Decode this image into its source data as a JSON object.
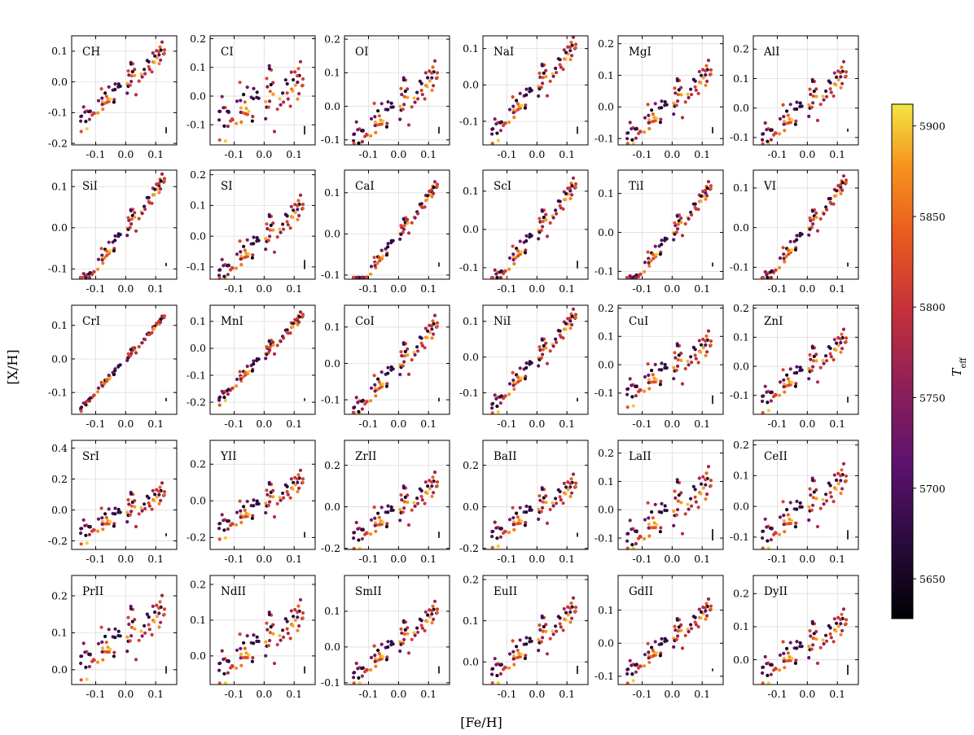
{
  "figure": {
    "xlabel": "[Fe/H]",
    "ylabel": "[X/H]",
    "colorbar_label": "T_eff"
  },
  "chart_data": {
    "type": "scatter",
    "layout": "5x6 grid of panels",
    "shared_x": {
      "label": "[Fe/H]",
      "range": [
        -0.18,
        0.17
      ],
      "ticks": [
        -0.1,
        0.0,
        0.1
      ]
    },
    "shared_y_label": "[X/H]",
    "grid": true,
    "color_encoding": {
      "label": "T_eff",
      "colormap": "inferno-like (black → dark red → orange → yellow)",
      "range": [
        5628,
        5912
      ],
      "ticks": [
        5650,
        5700,
        5750,
        5800,
        5850,
        5900
      ],
      "placement": "right"
    },
    "stars_per_panel": 80,
    "panels": [
      {
        "element": "CH",
        "ylim": [
          -0.205,
          0.15
        ],
        "yticks": [
          -0.2,
          -0.1,
          0.0,
          0.1
        ],
        "slope": 0.85,
        "scatter": 0.035,
        "offset": 0.0,
        "errorbar": 0.02
      },
      {
        "element": "CI",
        "ylim": [
          -0.17,
          0.21
        ],
        "yticks": [
          -0.1,
          0.0,
          0.1,
          0.2
        ],
        "slope": 0.55,
        "scatter": 0.07,
        "offset": 0.0,
        "errorbar": 0.03
      },
      {
        "element": "OI",
        "ylim": [
          -0.115,
          0.21
        ],
        "yticks": [
          -0.1,
          0.0,
          0.1,
          0.2
        ],
        "slope": 0.75,
        "scatter": 0.045,
        "offset": 0.01,
        "errorbar": 0.02
      },
      {
        "element": "NaI",
        "ylim": [
          -0.165,
          0.135
        ],
        "yticks": [
          -0.1,
          0.0,
          0.1
        ],
        "slope": 0.9,
        "scatter": 0.03,
        "offset": 0.0,
        "errorbar": 0.02
      },
      {
        "element": "MgI",
        "ylim": [
          -0.12,
          0.225
        ],
        "yticks": [
          -0.1,
          0.0,
          0.1,
          0.2
        ],
        "slope": 0.8,
        "scatter": 0.04,
        "offset": 0.02,
        "errorbar": 0.02
      },
      {
        "element": "AlI",
        "ylim": [
          -0.125,
          0.245
        ],
        "yticks": [
          -0.1,
          0.0,
          0.1,
          0.2
        ],
        "slope": 0.85,
        "scatter": 0.045,
        "offset": 0.02,
        "errorbar": 0.01
      },
      {
        "element": "SiI",
        "ylim": [
          -0.125,
          0.14
        ],
        "yticks": [
          -0.1,
          0.0,
          0.1
        ],
        "slope": 0.95,
        "scatter": 0.02,
        "offset": 0.0,
        "errorbar": 0.008
      },
      {
        "element": "SI",
        "ylim": [
          -0.14,
          0.215
        ],
        "yticks": [
          -0.1,
          0.0,
          0.1,
          0.2
        ],
        "slope": 0.85,
        "scatter": 0.04,
        "offset": 0.0,
        "errorbar": 0.03
      },
      {
        "element": "CaI",
        "ylim": [
          -0.11,
          0.155
        ],
        "yticks": [
          -0.1,
          0.0,
          0.1
        ],
        "slope": 0.95,
        "scatter": 0.015,
        "offset": 0.0,
        "errorbar": 0.01
      },
      {
        "element": "ScI",
        "ylim": [
          -0.13,
          0.155
        ],
        "yticks": [
          -0.1,
          0.0,
          0.1
        ],
        "slope": 0.95,
        "scatter": 0.025,
        "offset": 0.0,
        "errorbar": 0.02
      },
      {
        "element": "TiI",
        "ylim": [
          -0.12,
          0.16
        ],
        "yticks": [
          -0.1,
          0.0,
          0.1
        ],
        "slope": 0.95,
        "scatter": 0.02,
        "offset": 0.0,
        "errorbar": 0.01
      },
      {
        "element": "VI",
        "ylim": [
          -0.13,
          0.145
        ],
        "yticks": [
          -0.1,
          0.0,
          0.1
        ],
        "slope": 0.95,
        "scatter": 0.02,
        "offset": 0.0,
        "errorbar": 0.01
      },
      {
        "element": "CrI",
        "ylim": [
          -0.165,
          0.16
        ],
        "yticks": [
          -0.1,
          0.0,
          0.1
        ],
        "slope": 1.0,
        "scatter": 0.008,
        "offset": 0.0,
        "errorbar": 0.01
      },
      {
        "element": "MnI",
        "ylim": [
          -0.245,
          0.16
        ],
        "yticks": [
          -0.2,
          -0.1,
          0.0,
          0.1
        ],
        "slope": 1.15,
        "scatter": 0.02,
        "offset": -0.02,
        "errorbar": 0.01
      },
      {
        "element": "CoI",
        "ylim": [
          -0.14,
          0.16
        ],
        "yticks": [
          -0.1,
          0.0,
          0.1
        ],
        "slope": 0.9,
        "scatter": 0.03,
        "offset": 0.0,
        "errorbar": 0.01
      },
      {
        "element": "NiI",
        "ylim": [
          -0.16,
          0.145
        ],
        "yticks": [
          -0.1,
          0.0,
          0.1
        ],
        "slope": 0.95,
        "scatter": 0.025,
        "offset": 0.0,
        "errorbar": 0.01
      },
      {
        "element": "CuI",
        "ylim": [
          -0.175,
          0.21
        ],
        "yticks": [
          -0.1,
          0.0,
          0.1,
          0.2
        ],
        "slope": 0.7,
        "scatter": 0.045,
        "offset": 0.0,
        "errorbar": 0.03
      },
      {
        "element": "ZnI",
        "ylim": [
          -0.165,
          0.21
        ],
        "yticks": [
          -0.1,
          0.0,
          0.1,
          0.2
        ],
        "slope": 0.8,
        "scatter": 0.04,
        "offset": 0.0,
        "errorbar": 0.02
      },
      {
        "element": "SrI",
        "ylim": [
          -0.255,
          0.45
        ],
        "yticks": [
          -0.2,
          0.0,
          0.2,
          0.4
        ],
        "slope": 1.0,
        "scatter": 0.07,
        "offset": 0.0,
        "errorbar": 0.02
      },
      {
        "element": "YII",
        "ylim": [
          -0.265,
          0.33
        ],
        "yticks": [
          -0.2,
          0.0,
          0.2
        ],
        "slope": 1.0,
        "scatter": 0.06,
        "offset": 0.0,
        "errorbar": 0.03
      },
      {
        "element": "ZrII",
        "ylim": [
          -0.205,
          0.32
        ],
        "yticks": [
          -0.2,
          0.0,
          0.2
        ],
        "slope": 1.0,
        "scatter": 0.06,
        "offset": 0.0,
        "errorbar": 0.03
      },
      {
        "element": "BaII",
        "ylim": [
          -0.205,
          0.32
        ],
        "yticks": [
          -0.2,
          0.0,
          0.2
        ],
        "slope": 0.95,
        "scatter": 0.055,
        "offset": 0.0,
        "errorbar": 0.02
      },
      {
        "element": "LaII",
        "ylim": [
          -0.14,
          0.245
        ],
        "yticks": [
          -0.1,
          0.0,
          0.1,
          0.2
        ],
        "slope": 0.8,
        "scatter": 0.06,
        "offset": 0.01,
        "errorbar": 0.04
      },
      {
        "element": "CeII",
        "ylim": [
          -0.14,
          0.215
        ],
        "yticks": [
          -0.1,
          0.0,
          0.1,
          0.2
        ],
        "slope": 0.75,
        "scatter": 0.05,
        "offset": 0.01,
        "errorbar": 0.03
      },
      {
        "element": "PrII",
        "ylim": [
          -0.04,
          0.255
        ],
        "yticks": [
          0.0,
          0.1,
          0.2
        ],
        "slope": 0.55,
        "scatter": 0.045,
        "offset": 0.1,
        "errorbar": 0.02
      },
      {
        "element": "NdII",
        "ylim": [
          -0.08,
          0.225
        ],
        "yticks": [
          0.0,
          0.1,
          0.2
        ],
        "slope": 0.6,
        "scatter": 0.045,
        "offset": 0.05,
        "errorbar": 0.02
      },
      {
        "element": "SmII",
        "ylim": [
          -0.105,
          0.2
        ],
        "yticks": [
          -0.1,
          0.0,
          0.1
        ],
        "slope": 0.7,
        "scatter": 0.03,
        "offset": 0.02,
        "errorbar": 0.02
      },
      {
        "element": "EuII",
        "ylim": [
          -0.055,
          0.21
        ],
        "yticks": [
          0.0,
          0.1,
          0.2
        ],
        "slope": 0.6,
        "scatter": 0.03,
        "offset": 0.06,
        "errorbar": 0.02
      },
      {
        "element": "GdII",
        "ylim": [
          -0.125,
          0.205
        ],
        "yticks": [
          -0.1,
          0.0,
          0.1
        ],
        "slope": 0.75,
        "scatter": 0.03,
        "offset": 0.02,
        "errorbar": 0.008
      },
      {
        "element": "DyII",
        "ylim": [
          -0.075,
          0.255
        ],
        "yticks": [
          0.0,
          0.1,
          0.2
        ],
        "slope": 0.6,
        "scatter": 0.04,
        "offset": 0.05,
        "errorbar": 0.03
      }
    ]
  }
}
